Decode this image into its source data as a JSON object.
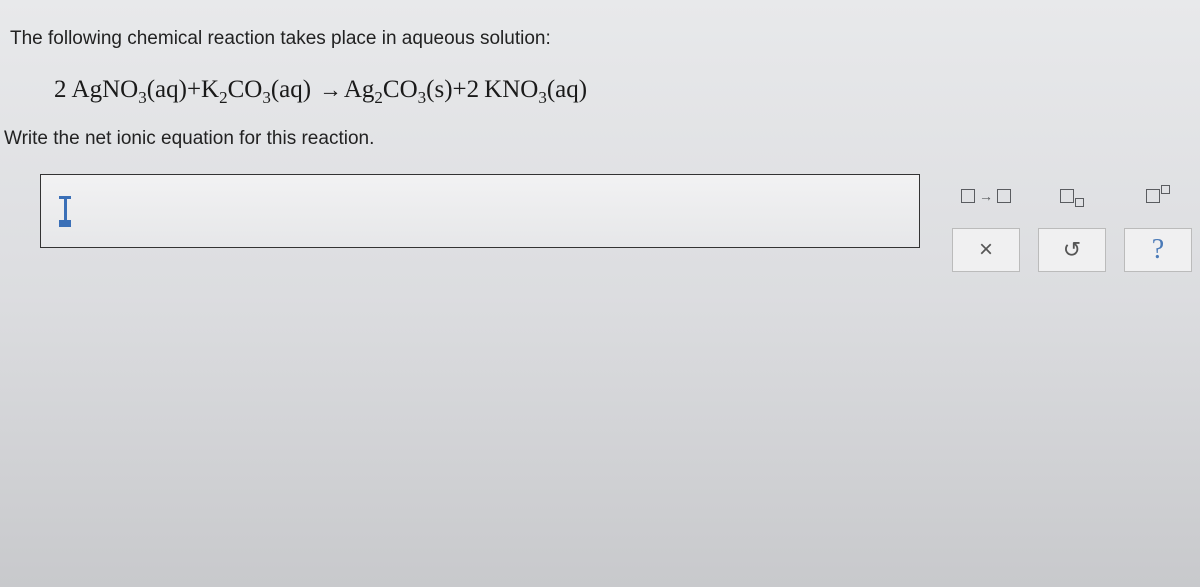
{
  "question": {
    "intro": "The following chemical reaction takes place in aqueous solution:",
    "instruction": "Write the net ionic equation for this reaction."
  },
  "equation": {
    "reactant1_coeff": "2",
    "reactant1": "AgNO",
    "reactant1_sub": "3",
    "reactant1_state": "(aq)",
    "plus1": "+",
    "reactant2": "K",
    "reactant2_sub1": "2",
    "reactant2_b": "CO",
    "reactant2_sub2": "3",
    "reactant2_state": "(aq)",
    "arrow": "→",
    "product1": "Ag",
    "product1_sub1": "2",
    "product1_b": "CO",
    "product1_sub2": "3",
    "product1_state": "(s)",
    "plus2": "+",
    "product2_coeff": "2",
    "product2": "KNO",
    "product2_sub": "3",
    "product2_state": "(aq)"
  },
  "toolbox": {
    "arrow_symbol": "→",
    "close": "×",
    "undo": "↺",
    "help": "?"
  },
  "colors": {
    "text": "#222222",
    "accent": "#4a7ab8",
    "tool_border": "#bbbbbb",
    "icon": "#5a5c60"
  }
}
